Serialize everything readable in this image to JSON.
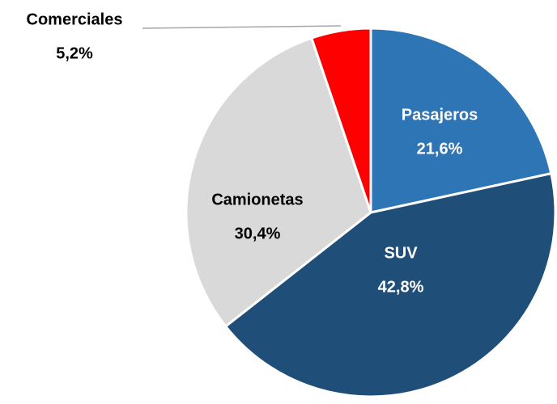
{
  "chart_data": {
    "type": "pie",
    "categories": [
      "Pasajeros",
      "SUV",
      "Camionetas",
      "Comerciales"
    ],
    "values": [
      21.6,
      42.8,
      30.4,
      5.2
    ],
    "value_labels": [
      "21,6%",
      "42,8%",
      "30,4%",
      "5,2%"
    ],
    "colors": [
      "#2e75b6",
      "#1f4e79",
      "#d9d9d9",
      "#ff0000"
    ]
  }
}
